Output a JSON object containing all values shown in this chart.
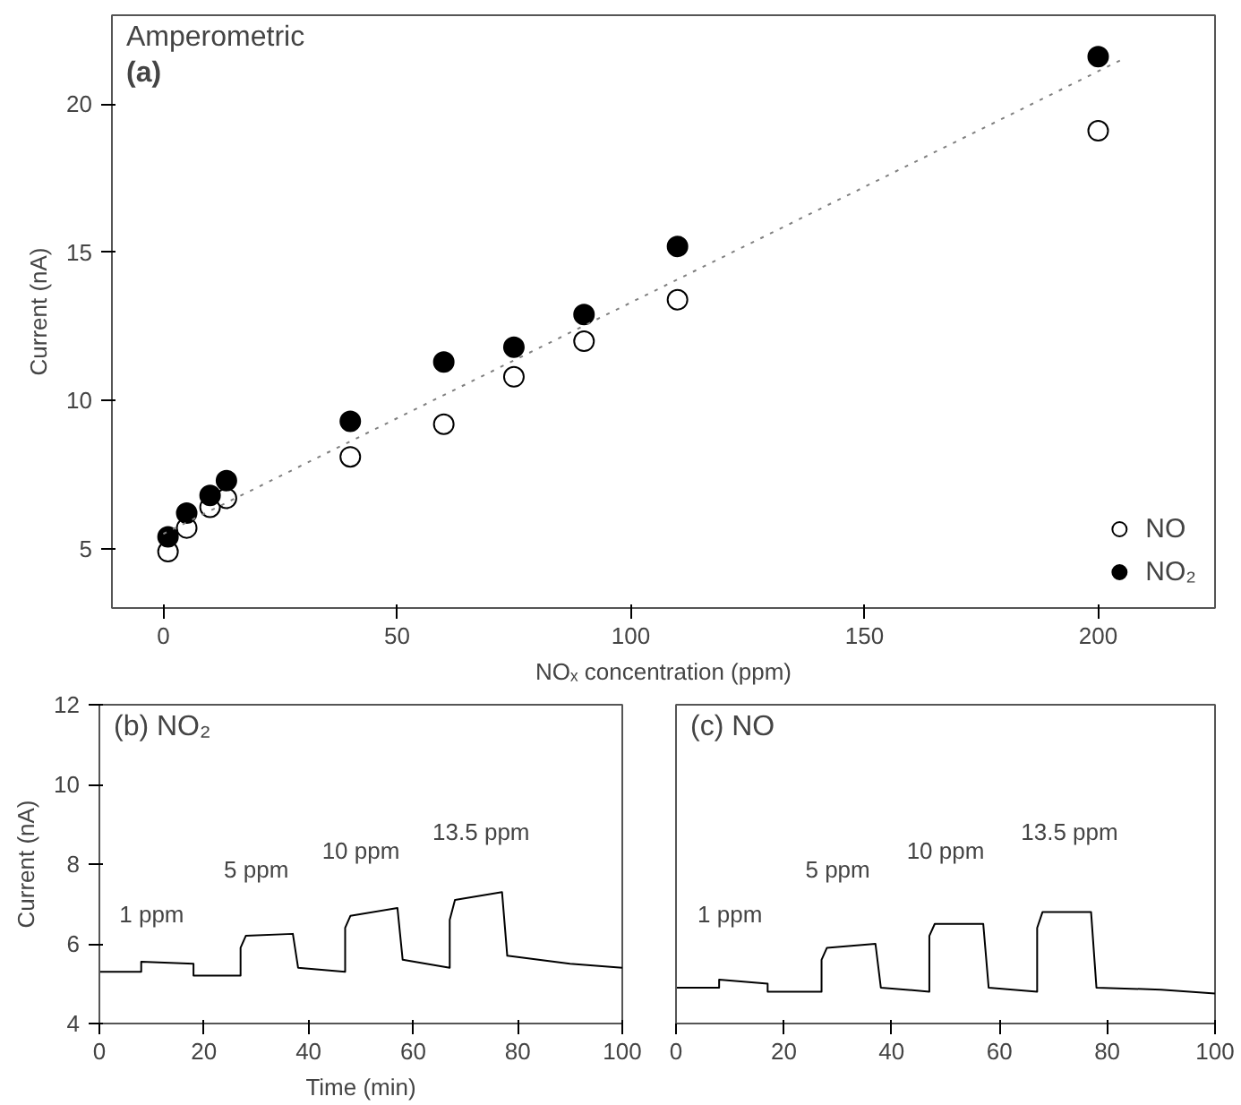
{
  "chart_data": [
    {
      "type": "scatter",
      "title": "Amperometric",
      "annotations": [
        "(a)"
      ],
      "xlabel": "NOₓ concentration (ppm)",
      "ylabel": "Current (nA)",
      "xlim": [
        -11,
        225
      ],
      "ylim": [
        3,
        23
      ],
      "xticks": [
        0,
        50,
        100,
        150,
        200
      ],
      "yticks": [
        5,
        10,
        15,
        20
      ],
      "grid": false,
      "legend": "bottom right",
      "marker": "circle",
      "series": [
        {
          "name": "NO",
          "color": "#ffffff",
          "x": [
            1,
            5,
            10,
            13.5,
            40,
            60,
            75,
            90,
            110,
            200
          ],
          "values": [
            4.9,
            5.7,
            6.4,
            6.7,
            8.1,
            9.2,
            10.8,
            12.0,
            13.4,
            19.1
          ]
        },
        {
          "name": "NO₂",
          "color": "#000000",
          "x": [
            1,
            5,
            10,
            13.5,
            40,
            60,
            75,
            90,
            110,
            200
          ],
          "values": [
            5.4,
            6.2,
            6.8,
            7.3,
            9.3,
            11.3,
            11.8,
            12.9,
            15.2,
            21.6
          ]
        },
        {
          "type": "line",
          "marker": "none",
          "color": "#808080",
          "line_style": "dotted",
          "x": [
            0,
            205
          ],
          "values": [
            5.5,
            21.5
          ]
        }
      ]
    },
    {
      "type": "line",
      "title": "(b) NO₂",
      "xlabel": "Time (min)",
      "ylabel": "Current (nA)",
      "xlim": [
        0,
        100
      ],
      "ylim": [
        4,
        12
      ],
      "xticks": [
        0,
        20,
        40,
        60,
        80,
        100
      ],
      "yticks": [
        4,
        6,
        8,
        10,
        12
      ],
      "grid": false,
      "annotations": [
        "1 ppm",
        "5 ppm",
        "10 ppm",
        "13.5 ppm"
      ],
      "series": [
        {
          "color": "#000000",
          "x": [
            0,
            8,
            8,
            18,
            18,
            27,
            27,
            28,
            37,
            38,
            47,
            47,
            48,
            57,
            58,
            67,
            67,
            68,
            77,
            78,
            90,
            100
          ],
          "values": [
            5.3,
            5.3,
            5.55,
            5.5,
            5.2,
            5.2,
            5.9,
            6.2,
            6.25,
            5.4,
            5.3,
            6.4,
            6.7,
            6.9,
            5.6,
            5.4,
            6.6,
            7.1,
            7.3,
            5.7,
            5.5,
            5.4
          ]
        }
      ]
    },
    {
      "type": "line",
      "title": "(c) NO",
      "xlim": [
        0,
        100
      ],
      "ylim": [
        4,
        12
      ],
      "xticks": [
        0,
        20,
        40,
        60,
        80,
        100
      ],
      "tick_labels": "x",
      "grid": false,
      "annotations": [
        "1 ppm",
        "5 ppm",
        "10 ppm",
        "13.5 ppm"
      ],
      "series": [
        {
          "color": "#000000",
          "x": [
            0,
            8,
            8,
            17,
            17,
            27,
            27,
            28,
            37,
            38,
            47,
            47,
            48,
            57,
            58,
            67,
            67,
            68,
            77,
            78,
            90,
            100
          ],
          "values": [
            4.9,
            4.9,
            5.1,
            5.0,
            4.8,
            4.8,
            5.6,
            5.9,
            6.0,
            4.9,
            4.8,
            6.2,
            6.5,
            6.5,
            4.9,
            4.8,
            6.4,
            6.8,
            6.8,
            4.9,
            4.85,
            4.75
          ]
        }
      ]
    }
  ]
}
